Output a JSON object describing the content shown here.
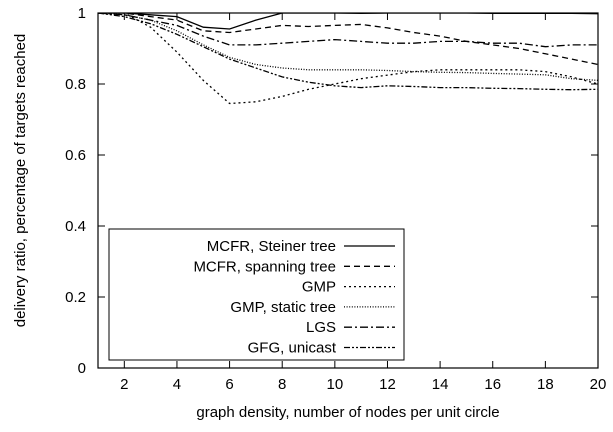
{
  "chart_data": {
    "type": "line",
    "title": "",
    "xlabel": "graph density, number of nodes per unit circle",
    "ylabel": "delivery ratio, percentage of targets reached",
    "xlim": [
      1,
      20
    ],
    "ylim": [
      0,
      1
    ],
    "x_ticks": [
      2,
      4,
      6,
      8,
      10,
      12,
      14,
      16,
      18,
      20
    ],
    "y_ticks": [
      0,
      0.2,
      0.4,
      0.6,
      0.8,
      1
    ],
    "y_tick_labels": [
      "0",
      "0.2",
      "0.4",
      "0.6",
      "0.8",
      "1"
    ],
    "grid": false,
    "legend_position": "bottom-left",
    "series": [
      {
        "name": "MCFR, Steiner tree",
        "dash": "solid",
        "x": [
          1,
          2,
          3,
          4,
          5,
          6,
          7,
          8,
          9,
          10,
          11,
          12,
          13,
          14,
          15,
          16,
          17,
          18,
          19,
          20
        ],
        "y": [
          1.0,
          1.0,
          0.995,
          0.99,
          0.96,
          0.955,
          0.98,
          1.0,
          1.0,
          1.0,
          0.999,
          1.0,
          1.0,
          1.0,
          1.0,
          0.999,
          0.999,
          0.999,
          0.999,
          0.998
        ]
      },
      {
        "name": "MCFR, spanning tree",
        "dash": "6,4",
        "x": [
          1,
          2,
          3,
          4,
          5,
          6,
          7,
          8,
          9,
          10,
          11,
          12,
          13,
          14,
          15,
          16,
          17,
          18,
          19,
          20
        ],
        "y": [
          1.0,
          1.0,
          0.99,
          0.98,
          0.95,
          0.945,
          0.955,
          0.965,
          0.962,
          0.965,
          0.968,
          0.958,
          0.945,
          0.935,
          0.92,
          0.91,
          0.9,
          0.885,
          0.87,
          0.855
        ]
      },
      {
        "name": "GMP",
        "dash": "2,3",
        "x": [
          1,
          2,
          3,
          4,
          5,
          6,
          7,
          8,
          9,
          10,
          11,
          12,
          13,
          14,
          15,
          16,
          17,
          18,
          19,
          20
        ],
        "y": [
          1.0,
          1.0,
          0.96,
          0.89,
          0.81,
          0.745,
          0.75,
          0.765,
          0.785,
          0.8,
          0.815,
          0.825,
          0.835,
          0.84,
          0.84,
          0.84,
          0.84,
          0.835,
          0.82,
          0.8
        ]
      },
      {
        "name": "GMP, static tree",
        "dash": "1,1.6",
        "x": [
          1,
          2,
          3,
          4,
          5,
          6,
          7,
          8,
          9,
          10,
          11,
          12,
          13,
          14,
          15,
          16,
          17,
          18,
          19,
          20
        ],
        "y": [
          1.0,
          0.995,
          0.98,
          0.95,
          0.91,
          0.875,
          0.855,
          0.845,
          0.84,
          0.84,
          0.84,
          0.838,
          0.835,
          0.833,
          0.832,
          0.83,
          0.828,
          0.826,
          0.815,
          0.81
        ]
      },
      {
        "name": "LGS",
        "dash": "8,3,2,3",
        "x": [
          1,
          2,
          3,
          4,
          5,
          6,
          7,
          8,
          9,
          10,
          11,
          12,
          13,
          14,
          15,
          16,
          17,
          18,
          19,
          20
        ],
        "y": [
          1.0,
          0.995,
          0.98,
          0.965,
          0.935,
          0.91,
          0.91,
          0.915,
          0.92,
          0.925,
          0.92,
          0.915,
          0.915,
          0.92,
          0.92,
          0.915,
          0.915,
          0.905,
          0.91,
          0.91
        ]
      },
      {
        "name": "GFG, unicast",
        "dash": "6,2,2,2,2,2",
        "x": [
          1,
          2,
          3,
          4,
          5,
          6,
          7,
          8,
          9,
          10,
          11,
          12,
          13,
          14,
          15,
          16,
          17,
          18,
          19,
          20
        ],
        "y": [
          1.0,
          0.99,
          0.97,
          0.94,
          0.905,
          0.87,
          0.845,
          0.82,
          0.805,
          0.795,
          0.79,
          0.795,
          0.793,
          0.79,
          0.79,
          0.788,
          0.787,
          0.785,
          0.784,
          0.785
        ]
      }
    ]
  }
}
